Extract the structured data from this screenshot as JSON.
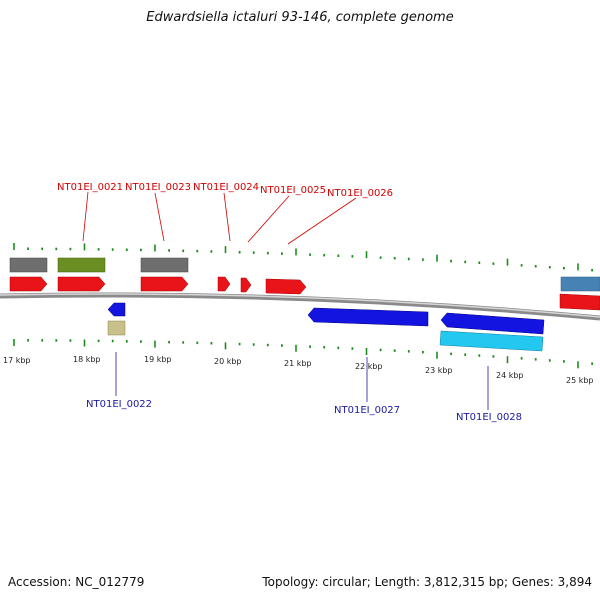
{
  "title": "Edwardsiella ictaluri 93-146, complete genome",
  "footer": {
    "accession": "Accession: NC_012779",
    "summary": "Topology: circular; Length: 3,812,315 bp; Genes: 3,894"
  },
  "colors": {
    "forward_gene": "#e8141a",
    "reverse_gene": "#1414e0",
    "grey_feature": "#6e6e6e",
    "olive_feature": "#6b8e23",
    "khaki_feature": "#c8c08a",
    "cyan_feature": "#22c8f0",
    "steel_feature": "#4682b4",
    "tick": "#1e8c1e",
    "forward_label": "#d40000",
    "reverse_label": "#1a1aa0"
  },
  "scale_labels": [
    "17 kbp",
    "18 kbp",
    "19 kbp",
    "20 kbp",
    "21 kbp",
    "22 kbp",
    "23 kbp",
    "24 kbp",
    "25 kbp"
  ],
  "forward_gene_labels": [
    "NT01EI_0021",
    "NT01EI_0023",
    "NT01EI_0024",
    "NT01EI_0025",
    "NT01EI_0026"
  ],
  "reverse_gene_labels": [
    "NT01EI_0022",
    "NT01EI_0027",
    "NT01EI_0028"
  ]
}
